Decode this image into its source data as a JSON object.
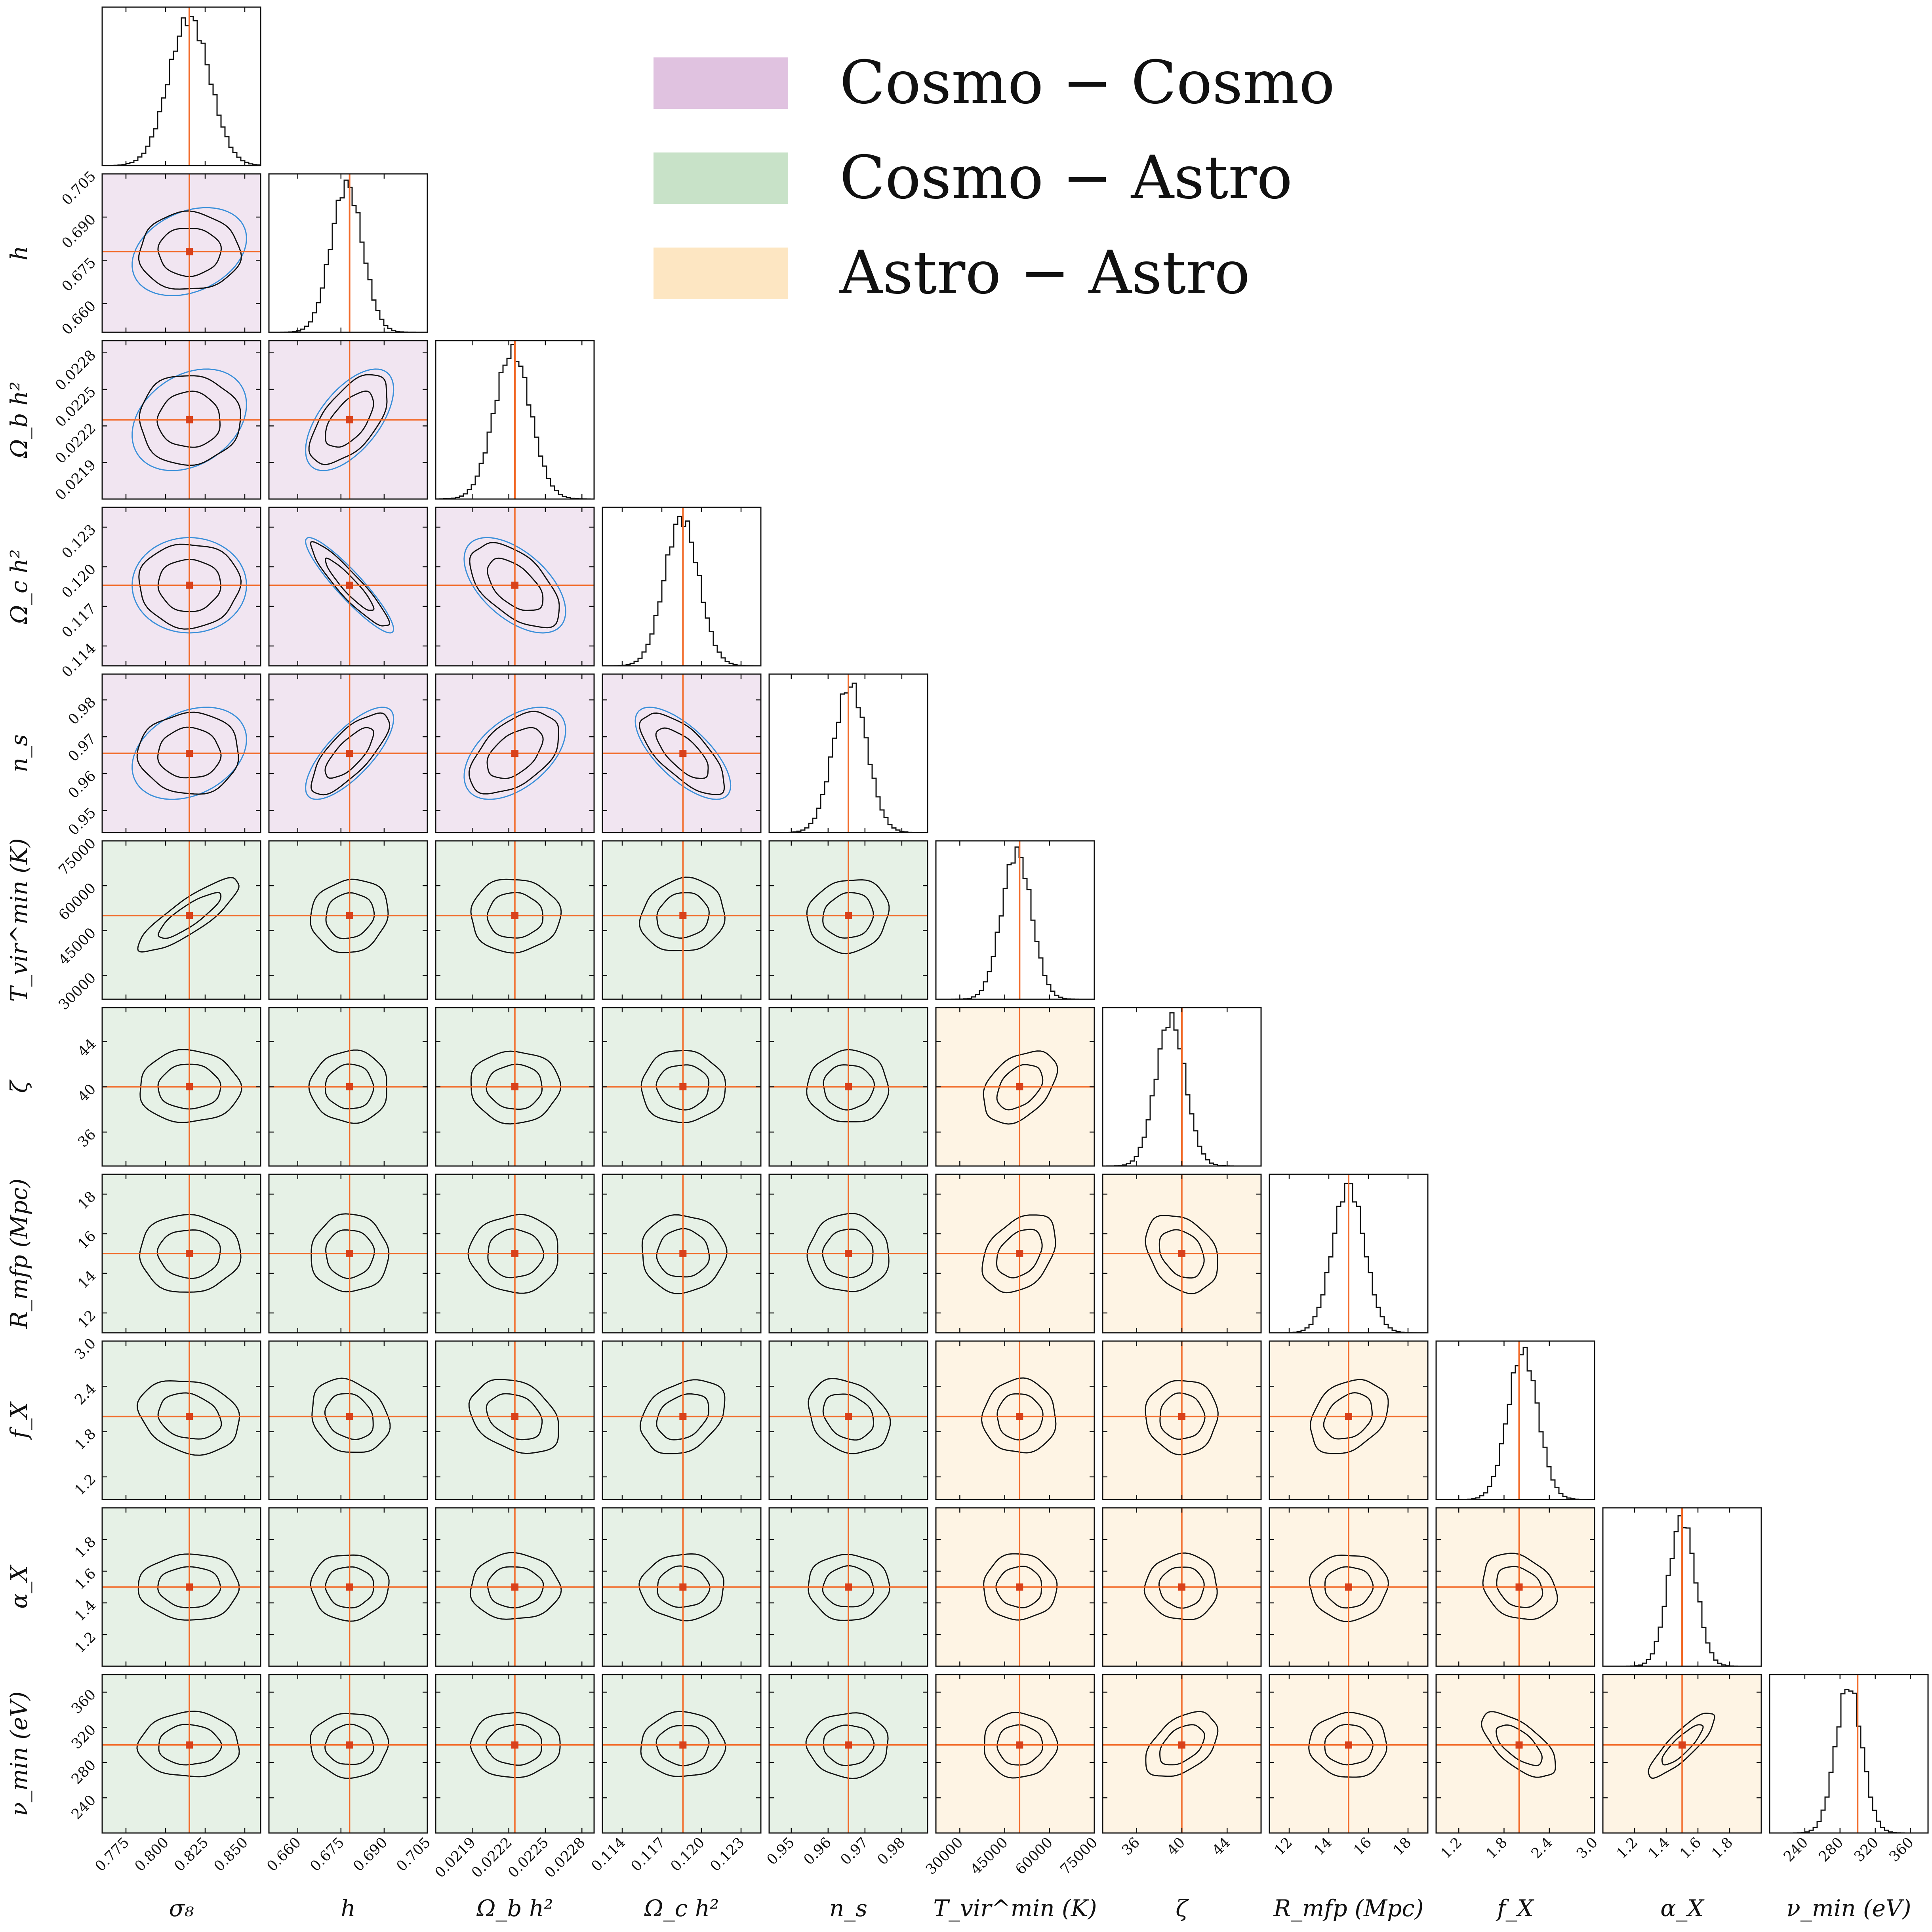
{
  "legend": [
    {
      "label": "Cosmo − Cosmo",
      "color": "#e0c2e0"
    },
    {
      "label": "Cosmo − Astro",
      "color": "#c8e2c8"
    },
    {
      "label": "Astro − Astro",
      "color": "#fde6c2"
    }
  ],
  "colors": {
    "cosmo_cosmo_bg": "#f1e5f1",
    "cosmo_astro_bg": "#e6f1e6",
    "astro_astro_bg": "#fef4e4",
    "truth_line": "#f26a28",
    "truth_marker": "#d9411b",
    "fisher_ellipse": "#3a8fd9",
    "contour": "#111111"
  },
  "chart_data": {
    "type": "corner",
    "parameters": [
      {
        "name": "sigma8",
        "label": "σ₈",
        "truth": 0.815,
        "range": [
          0.76,
          0.86
        ],
        "ticks": [
          "0.775",
          "0.800",
          "0.825",
          "0.850"
        ],
        "tick_values": [
          0.775,
          0.8,
          0.825,
          0.85
        ],
        "sigma": 0.013,
        "peak": 0.815
      },
      {
        "name": "h",
        "label": "h",
        "truth": 0.678,
        "range": [
          0.65,
          0.705
        ],
        "ticks": [
          "0.660",
          "0.675",
          "0.690",
          "0.705"
        ],
        "tick_values": [
          0.66,
          0.675,
          0.69,
          0.705
        ],
        "sigma": 0.0055,
        "peak": 0.677
      },
      {
        "name": "omega_b_h2",
        "label": "Ω_b h²",
        "truth": 0.02225,
        "range": [
          0.0216,
          0.0229
        ],
        "ticks": [
          "0.0219",
          "0.0222",
          "0.0225",
          "0.0228"
        ],
        "tick_values": [
          0.0219,
          0.0222,
          0.0225,
          0.0228
        ],
        "sigma": 0.00015,
        "peak": 0.02223
      },
      {
        "name": "omega_c_h2",
        "label": "Ω_c h²",
        "truth": 0.1186,
        "range": [
          0.1125,
          0.1245
        ],
        "ticks": [
          "0.114",
          "0.117",
          "0.120",
          "0.123"
        ],
        "tick_values": [
          0.114,
          0.117,
          0.12,
          0.123
        ],
        "sigma": 0.0013,
        "peak": 0.1185
      },
      {
        "name": "n_s",
        "label": "n_s",
        "truth": 0.9655,
        "range": [
          0.944,
          0.987
        ],
        "ticks": [
          "0.95",
          "0.96",
          "0.97",
          "0.98"
        ],
        "tick_values": [
          0.95,
          0.96,
          0.97,
          0.98
        ],
        "sigma": 0.0045,
        "peak": 0.966
      },
      {
        "name": "T_vir_min",
        "label": "T_vir^min (K)",
        "truth": 50000,
        "range": [
          22000,
          75000
        ],
        "ticks": [
          "30000",
          "45000",
          "60000",
          "75000"
        ],
        "tick_values": [
          30000,
          45000,
          60000,
          75000
        ],
        "sigma": 5000,
        "peak": 49000
      },
      {
        "name": "zeta",
        "label": "ζ",
        "truth": 40.0,
        "range": [
          33.0,
          47.0
        ],
        "ticks": [
          "36",
          "40",
          "44"
        ],
        "tick_values": [
          36,
          40,
          44
        ],
        "sigma": 1.3,
        "peak": 39.0
      },
      {
        "name": "R_mfp",
        "label": "R_mfp (Mpc)",
        "truth": 15.0,
        "range": [
          11.0,
          19.0
        ],
        "ticks": [
          "12",
          "14",
          "16",
          "18"
        ],
        "tick_values": [
          12,
          14,
          16,
          18
        ],
        "sigma": 0.8,
        "peak": 15.0
      },
      {
        "name": "f_X",
        "label": "f_X",
        "truth": 2.0,
        "range": [
          0.9,
          3.0
        ],
        "ticks": [
          "1.2",
          "1.8",
          "2.4",
          "3.0"
        ],
        "tick_values": [
          1.2,
          1.8,
          2.4,
          3.0
        ],
        "sigma": 0.2,
        "peak": 2.05
      },
      {
        "name": "alpha_X",
        "label": "α_X",
        "truth": 1.5,
        "range": [
          1.0,
          2.0
        ],
        "ticks": [
          "1.2",
          "1.4",
          "1.6",
          "1.8"
        ],
        "tick_values": [
          1.2,
          1.4,
          1.6,
          1.8
        ],
        "sigma": 0.085,
        "peak": 1.5
      },
      {
        "name": "nu_min",
        "label": "ν_min (eV)",
        "truth": 300,
        "range": [
          200,
          380
        ],
        "ticks": [
          "240",
          "280",
          "320",
          "360"
        ],
        "tick_values": [
          240,
          280,
          320,
          360
        ],
        "sigma": 15,
        "peak": 290
      }
    ],
    "correlations": [
      {
        "row": 1,
        "col": 0,
        "rho": 0.0,
        "fisher_rho": 0.3
      },
      {
        "row": 2,
        "col": 0,
        "rho": 0.0,
        "fisher_rho": 0.3
      },
      {
        "row": 2,
        "col": 1,
        "rho": 0.6,
        "fisher_rho": 0.6
      },
      {
        "row": 3,
        "col": 0,
        "rho": 0.0,
        "fisher_rho": 0.0
      },
      {
        "row": 3,
        "col": 1,
        "rho": -0.92,
        "fisher_rho": -0.92
      },
      {
        "row": 3,
        "col": 2,
        "rho": -0.55,
        "fisher_rho": -0.55
      },
      {
        "row": 4,
        "col": 0,
        "rho": 0.0,
        "fisher_rho": 0.3
      },
      {
        "row": 4,
        "col": 1,
        "rho": 0.75,
        "fisher_rho": 0.75
      },
      {
        "row": 4,
        "col": 2,
        "rho": 0.5,
        "fisher_rho": 0.5
      },
      {
        "row": 4,
        "col": 3,
        "rho": -0.7,
        "fisher_rho": -0.7
      },
      {
        "row": 5,
        "col": 0,
        "rho": 0.85
      },
      {
        "row": 5,
        "col": 1,
        "rho": 0.1
      },
      {
        "row": 5,
        "col": 2,
        "rho": 0.0
      },
      {
        "row": 5,
        "col": 3,
        "rho": 0.1
      },
      {
        "row": 5,
        "col": 4,
        "rho": 0.1
      },
      {
        "row": 6,
        "col": 5,
        "rho": 0.4
      },
      {
        "row": 7,
        "col": 5,
        "rho": 0.35
      },
      {
        "row": 7,
        "col": 6,
        "rho": -0.3
      },
      {
        "row": 8,
        "col": 0,
        "rho": -0.2
      },
      {
        "row": 8,
        "col": 1,
        "rho": -0.2
      },
      {
        "row": 8,
        "col": 2,
        "rho": -0.3
      },
      {
        "row": 8,
        "col": 3,
        "rho": 0.3
      },
      {
        "row": 8,
        "col": 4,
        "rho": -0.25
      },
      {
        "row": 8,
        "col": 7,
        "rho": 0.3
      },
      {
        "row": 9,
        "col": 8,
        "rho": -0.25
      },
      {
        "row": 10,
        "col": 6,
        "rho": 0.45
      },
      {
        "row": 10,
        "col": 8,
        "rho": -0.65
      },
      {
        "row": 10,
        "col": 9,
        "rho": 0.85
      }
    ],
    "fisher_panels": "cosmological parameters (rows 1-4, cols 0-3) show blue Fisher-forecast ellipses",
    "grid": false,
    "legend_position": "top-right"
  }
}
